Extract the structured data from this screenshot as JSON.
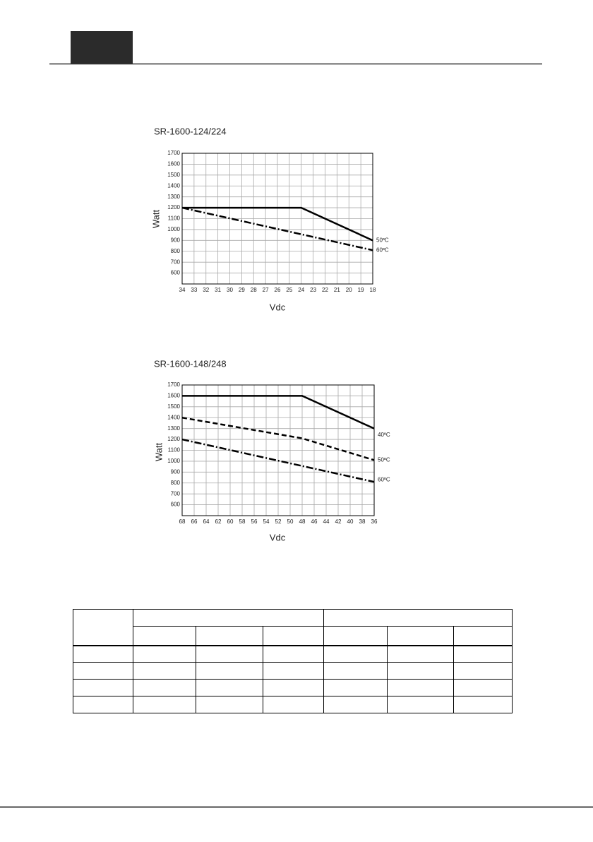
{
  "chart_data": [
    {
      "type": "line",
      "title": "SR-1600-124/224",
      "xlabel": "Vdc",
      "ylabel": "Watt",
      "xlim": [
        34,
        18
      ],
      "xticks": [
        34,
        33,
        32,
        31,
        30,
        29,
        28,
        27,
        26,
        25,
        24,
        23,
        22,
        21,
        20,
        19,
        18
      ],
      "ylim": [
        500,
        1700
      ],
      "yticks": [
        600,
        700,
        800,
        900,
        1000,
        1100,
        1200,
        1300,
        1400,
        1500,
        1600,
        1700
      ],
      "grid": true,
      "series": [
        {
          "name": "50ºC",
          "color": "#000000",
          "dash": "solid",
          "x": [
            34,
            24,
            18
          ],
          "values": [
            1200,
            1200,
            900
          ]
        },
        {
          "name": "60ºC",
          "color": "#000000",
          "dash": "dashdot",
          "x": [
            34,
            18
          ],
          "values": [
            1200,
            810
          ]
        }
      ]
    },
    {
      "type": "line",
      "title": "SR-1600-148/248",
      "xlabel": "Vdc",
      "ylabel": "Watt",
      "xlim": [
        68,
        36
      ],
      "xticks": [
        68,
        66,
        64,
        62,
        60,
        58,
        56,
        54,
        52,
        50,
        48,
        46,
        44,
        42,
        40,
        38,
        36
      ],
      "ylim": [
        500,
        1700
      ],
      "yticks": [
        600,
        700,
        800,
        900,
        1000,
        1100,
        1200,
        1300,
        1400,
        1500,
        1600,
        1700
      ],
      "grid": true,
      "series": [
        {
          "name": "40ºC",
          "color": "#000000",
          "dash": "solid",
          "x": [
            68,
            48,
            36
          ],
          "values": [
            1600,
            1600,
            1300
          ]
        },
        {
          "name": "50ºC",
          "color": "#000000",
          "dash": "dashed",
          "x": [
            68,
            48,
            36
          ],
          "values": [
            1400,
            1210,
            1010
          ]
        },
        {
          "name": "60ºC",
          "color": "#000000",
          "dash": "dashdot",
          "x": [
            68,
            36
          ],
          "values": [
            1200,
            810
          ]
        }
      ]
    }
  ]
}
